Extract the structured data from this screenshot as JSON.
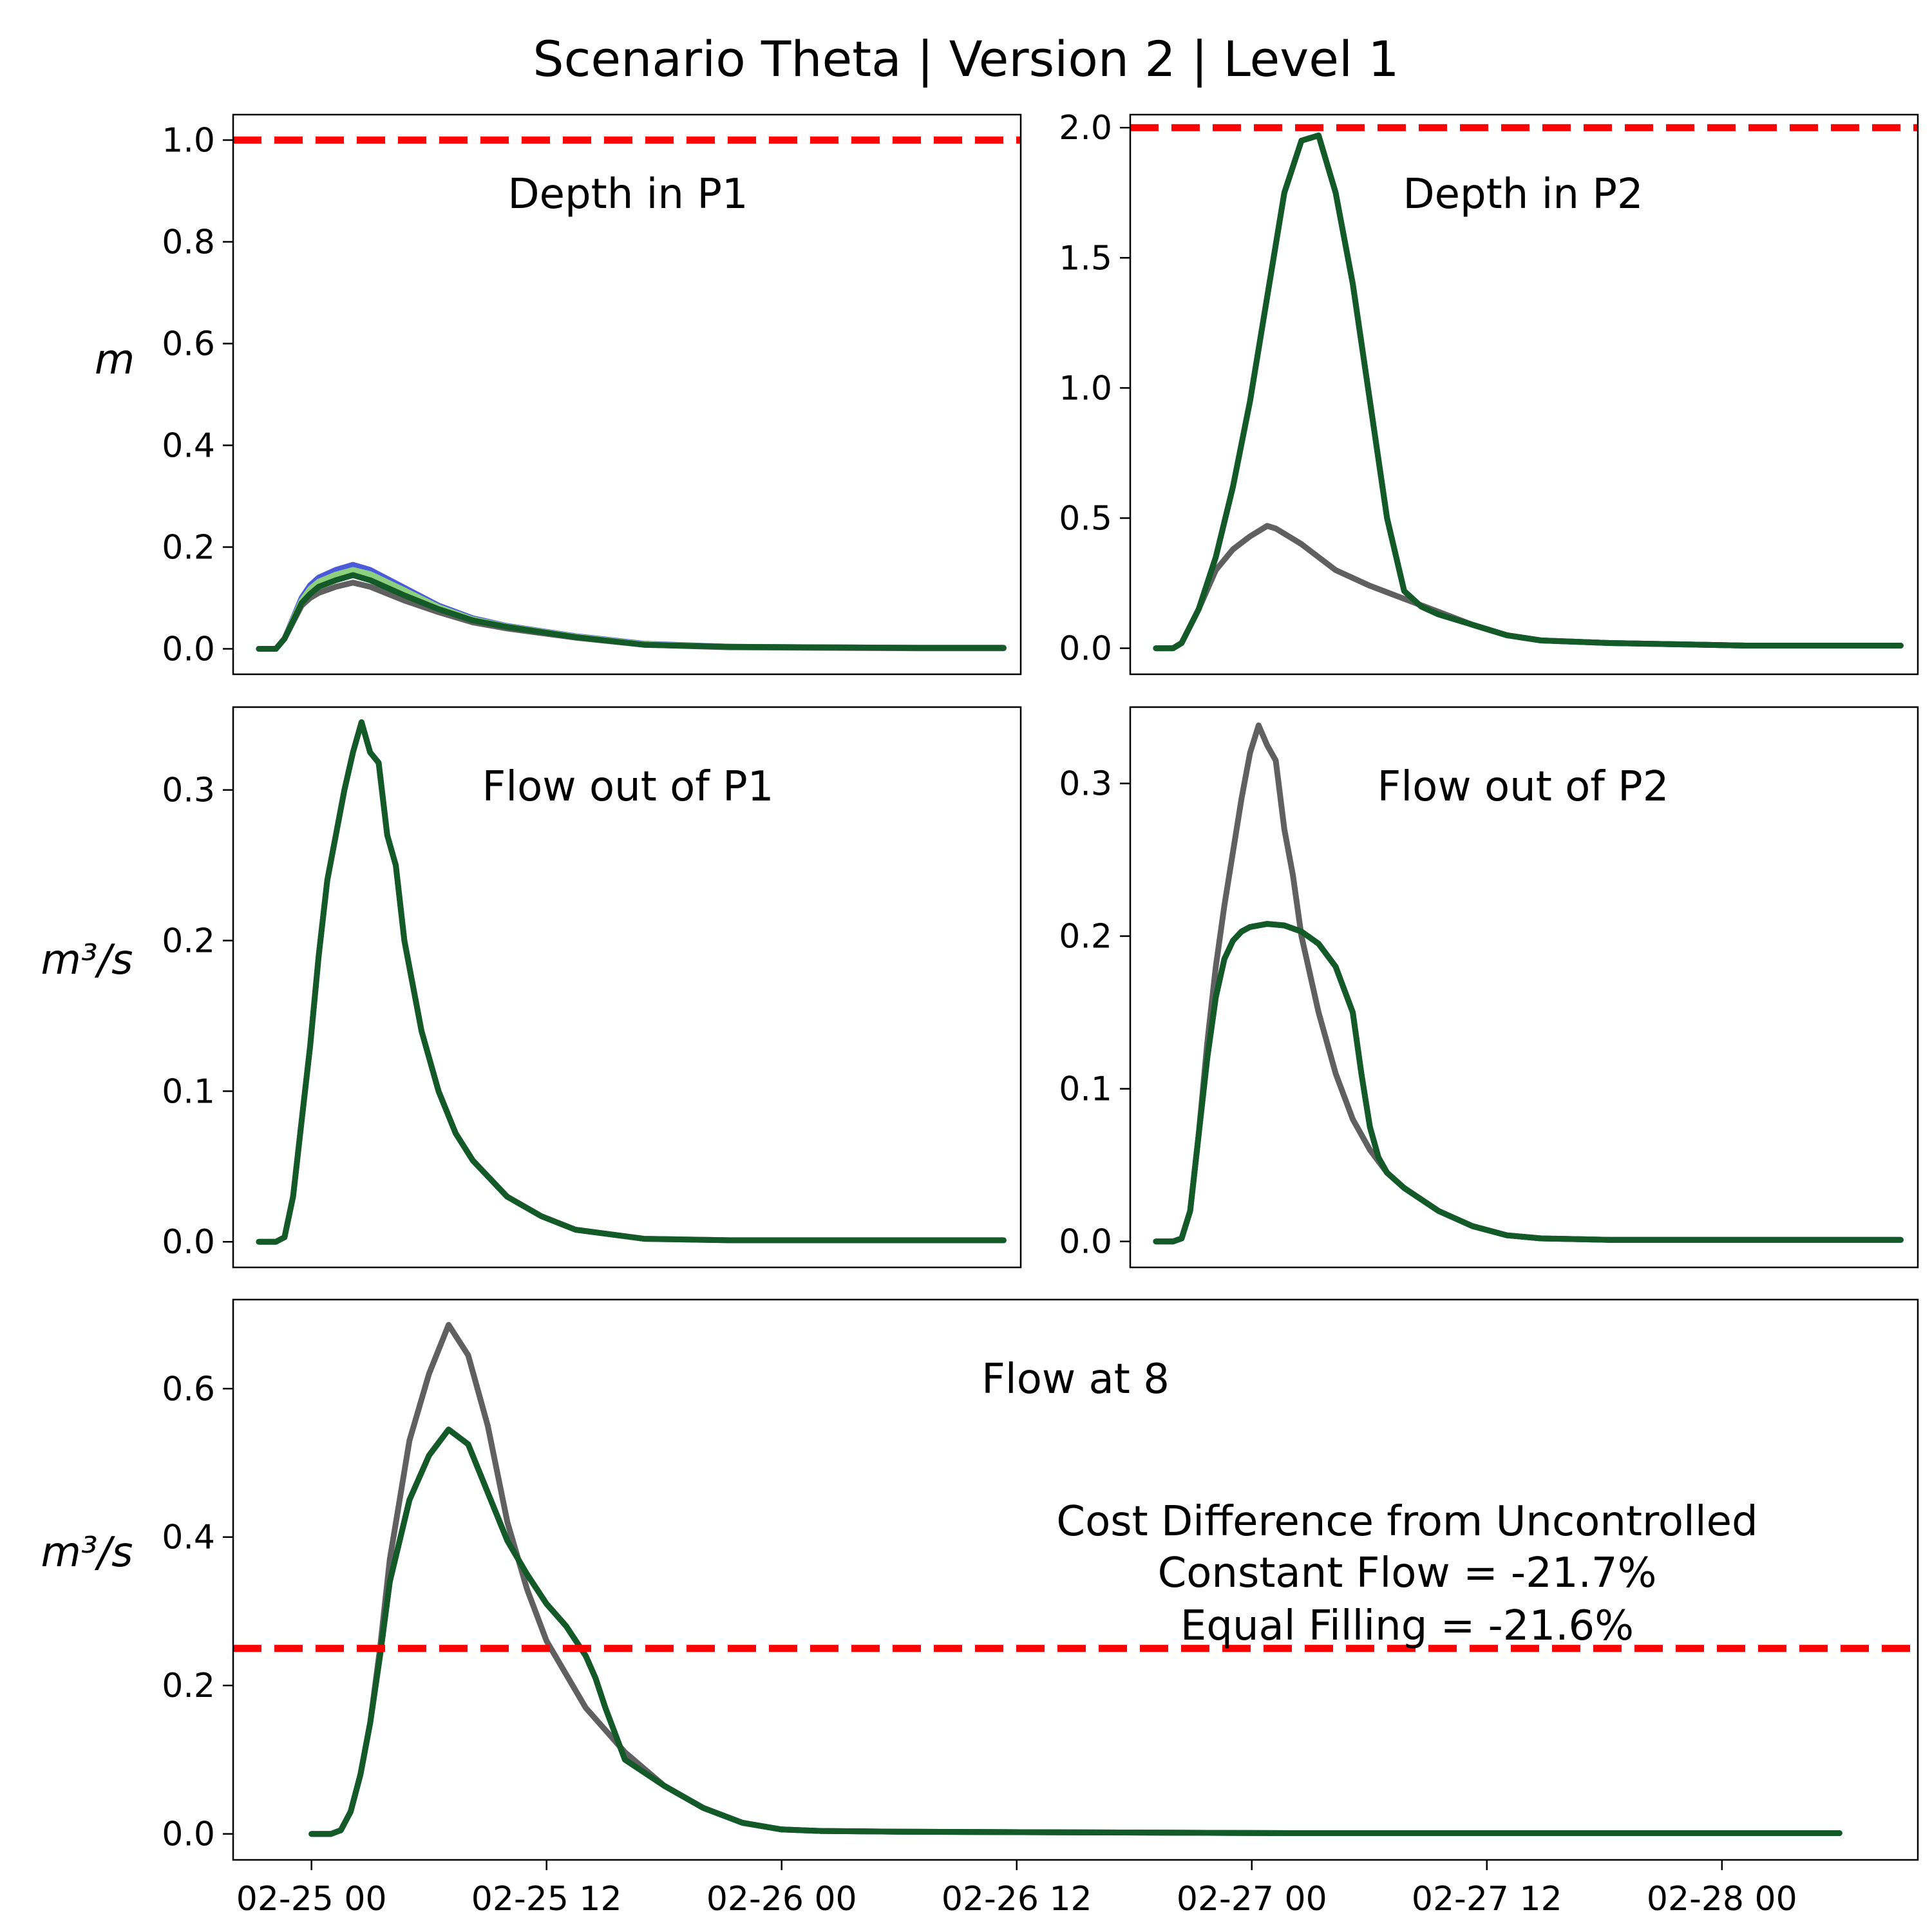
{
  "figure": {
    "title": "Scenario Theta | Version 2 | Level 1"
  },
  "colors": {
    "uncontrolled": "#606060",
    "equal_filling": "#1e6b60",
    "constant_flow": "#145a28",
    "blue_series": "#4a5ad8",
    "light_green_series": "#8fd080",
    "threshold": "#ff0000"
  },
  "x_axis": {
    "tick_labels": [
      "02-25 00",
      "02-25 12",
      "02-26 00",
      "02-26 12",
      "02-27 00",
      "02-27 12",
      "02-28 00"
    ],
    "tick_hours": [
      0,
      12,
      24,
      36,
      48,
      60,
      72
    ],
    "start": "2024-02-25 00:00",
    "range_hours": [
      -4,
      82
    ]
  },
  "annotation": {
    "line1": "Cost Difference from Uncontrolled",
    "line2": "Constant Flow = -21.7%",
    "line3": "Equal Filling = -21.6%"
  },
  "chart_data": [
    {
      "id": "depth_p1",
      "type": "line",
      "title": "Depth in P1",
      "ylabel": "m",
      "ylim": [
        -0.05,
        1.05
      ],
      "yticks": [
        0.0,
        0.2,
        0.4,
        0.6,
        0.8,
        1.0
      ],
      "ytick_labels": [
        "0.0",
        "0.2",
        "0.4",
        "0.6",
        "0.8",
        "1.0"
      ],
      "threshold": 1.0,
      "xrange": [
        -4,
        42
      ],
      "series": [
        {
          "key": "blue_series",
          "x": [
            -2.5,
            -1.5,
            -1,
            0,
            0.5,
            1,
            2,
            3,
            4,
            6,
            8,
            10,
            12,
            14,
            16,
            20,
            25,
            30,
            36,
            41
          ],
          "y": [
            0,
            0,
            0.02,
            0.1,
            0.125,
            0.14,
            0.155,
            0.165,
            0.155,
            0.12,
            0.085,
            0.06,
            0.045,
            0.035,
            0.025,
            0.01,
            0.004,
            0.003,
            0.002,
            0.002
          ]
        },
        {
          "key": "light_green_series",
          "x": [
            -2.5,
            -1.5,
            -1,
            0,
            0.5,
            1,
            2,
            3,
            4,
            6,
            8,
            10,
            12,
            14,
            16,
            20,
            25,
            30,
            36,
            41
          ],
          "y": [
            0,
            0,
            0.02,
            0.095,
            0.118,
            0.132,
            0.146,
            0.155,
            0.147,
            0.115,
            0.082,
            0.058,
            0.044,
            0.034,
            0.024,
            0.009,
            0.004,
            0.003,
            0.002,
            0.002
          ]
        },
        {
          "key": "uncontrolled",
          "x": [
            -2.5,
            -1.5,
            -1,
            0,
            0.5,
            1,
            2,
            3,
            4,
            6,
            8,
            10,
            12,
            14,
            16,
            20,
            25,
            30,
            36,
            41
          ],
          "y": [
            0,
            0,
            0.02,
            0.085,
            0.1,
            0.11,
            0.122,
            0.13,
            0.122,
            0.095,
            0.072,
            0.052,
            0.04,
            0.031,
            0.022,
            0.008,
            0.003,
            0.002,
            0.001,
            0.001
          ]
        },
        {
          "key": "constant_flow",
          "x": [
            -2.5,
            -1.5,
            -1,
            0,
            0.5,
            1,
            2,
            3,
            4,
            6,
            8,
            10,
            12,
            14,
            16,
            20,
            25,
            30,
            36,
            41
          ],
          "y": [
            0,
            0,
            0.02,
            0.09,
            0.108,
            0.122,
            0.135,
            0.145,
            0.135,
            0.105,
            0.078,
            0.056,
            0.043,
            0.033,
            0.023,
            0.008,
            0.004,
            0.003,
            0.002,
            0.002
          ]
        }
      ]
    },
    {
      "id": "depth_p2",
      "type": "line",
      "title": "Depth in P2",
      "ylabel": "",
      "ylim": [
        -0.1,
        2.05
      ],
      "yticks": [
        0.0,
        0.5,
        1.0,
        1.5,
        2.0
      ],
      "ytick_labels": [
        "0.0",
        "0.5",
        "1.0",
        "1.5",
        "2.0"
      ],
      "threshold": 2.0,
      "xrange": [
        34,
        80
      ],
      "series": [
        {
          "key": "uncontrolled",
          "x": [
            35.5,
            36.5,
            37,
            38,
            39,
            40,
            41,
            42,
            42.5,
            43,
            44,
            46,
            48,
            50,
            52,
            54,
            56,
            58,
            62,
            70,
            79
          ],
          "y": [
            0,
            0,
            0.02,
            0.15,
            0.3,
            0.38,
            0.43,
            0.47,
            0.46,
            0.44,
            0.4,
            0.3,
            0.24,
            0.19,
            0.14,
            0.09,
            0.05,
            0.03,
            0.02,
            0.01,
            0.01
          ]
        },
        {
          "key": "equal_filling",
          "x": [
            35.5,
            36.5,
            37,
            38,
            39,
            40,
            41,
            42,
            43,
            44,
            45,
            46,
            47,
            48,
            49,
            50,
            51,
            52,
            54,
            56,
            58,
            62,
            70,
            79
          ],
          "y": [
            0,
            0,
            0.02,
            0.15,
            0.35,
            0.62,
            0.95,
            1.35,
            1.75,
            1.95,
            1.97,
            1.75,
            1.4,
            0.95,
            0.5,
            0.22,
            0.16,
            0.13,
            0.09,
            0.05,
            0.03,
            0.02,
            0.01,
            0.01
          ]
        },
        {
          "key": "constant_flow",
          "x": [
            35.5,
            36.5,
            37,
            38,
            39,
            40,
            41,
            42,
            43,
            44,
            45,
            46,
            47,
            48,
            49,
            50,
            51,
            52,
            54,
            56,
            58,
            62,
            70,
            79
          ],
          "y": [
            0,
            0,
            0.02,
            0.15,
            0.35,
            0.62,
            0.95,
            1.35,
            1.75,
            1.95,
            1.97,
            1.75,
            1.4,
            0.95,
            0.5,
            0.22,
            0.16,
            0.13,
            0.09,
            0.05,
            0.03,
            0.02,
            0.01,
            0.01
          ]
        }
      ]
    },
    {
      "id": "flow_p1",
      "type": "line",
      "title": "Flow out of P1",
      "ylabel": "m³/s",
      "ylim": [
        -0.017,
        0.355
      ],
      "yticks": [
        0.0,
        0.1,
        0.2,
        0.3
      ],
      "ytick_labels": [
        "0.0",
        "0.1",
        "0.2",
        "0.3"
      ],
      "threshold": null,
      "xrange": [
        -4,
        42
      ],
      "series": [
        {
          "key": "uncontrolled",
          "x": [
            -2.5,
            -1.5,
            -1,
            -0.5,
            0,
            0.5,
            1,
            1.5,
            2,
            2.5,
            3,
            3.5,
            4,
            4.5,
            5,
            5.5,
            6,
            7,
            8,
            9,
            10,
            12,
            14,
            16,
            20,
            25,
            30,
            36,
            41
          ],
          "y": [
            0,
            0,
            0.003,
            0.03,
            0.08,
            0.13,
            0.19,
            0.24,
            0.27,
            0.3,
            0.325,
            0.345,
            0.325,
            0.318,
            0.27,
            0.25,
            0.2,
            0.14,
            0.1,
            0.072,
            0.054,
            0.03,
            0.017,
            0.008,
            0.002,
            0.001,
            0.001,
            0.001,
            0.001
          ]
        },
        {
          "key": "constant_flow",
          "x": [
            -2.5,
            -1.5,
            -1,
            -0.5,
            0,
            0.5,
            1,
            1.5,
            2,
            2.5,
            3,
            3.5,
            4,
            4.5,
            5,
            5.5,
            6,
            7,
            8,
            9,
            10,
            12,
            14,
            16,
            20,
            25,
            30,
            36,
            41
          ],
          "y": [
            0,
            0,
            0.003,
            0.03,
            0.08,
            0.13,
            0.19,
            0.24,
            0.27,
            0.3,
            0.325,
            0.345,
            0.325,
            0.318,
            0.27,
            0.25,
            0.2,
            0.14,
            0.1,
            0.072,
            0.054,
            0.03,
            0.017,
            0.008,
            0.002,
            0.001,
            0.001,
            0.001,
            0.001
          ]
        }
      ]
    },
    {
      "id": "flow_p2",
      "type": "line",
      "title": "Flow out of P2",
      "ylabel": "",
      "ylim": [
        -0.017,
        0.35
      ],
      "yticks": [
        0.0,
        0.1,
        0.2,
        0.3
      ],
      "ytick_labels": [
        "0.0",
        "0.1",
        "0.2",
        "0.3"
      ],
      "threshold": null,
      "xrange": [
        34,
        80
      ],
      "series": [
        {
          "key": "uncontrolled",
          "x": [
            35.5,
            36.5,
            37,
            37.5,
            38,
            38.5,
            39,
            39.5,
            40,
            40.5,
            41,
            41.5,
            42,
            42.5,
            43,
            43.5,
            44,
            45,
            46,
            47,
            48,
            49,
            50,
            52,
            54,
            56,
            58,
            62,
            70,
            79
          ],
          "y": [
            0,
            0,
            0.002,
            0.02,
            0.07,
            0.13,
            0.18,
            0.22,
            0.255,
            0.29,
            0.32,
            0.338,
            0.325,
            0.315,
            0.27,
            0.24,
            0.2,
            0.15,
            0.11,
            0.08,
            0.06,
            0.045,
            0.035,
            0.02,
            0.01,
            0.004,
            0.002,
            0.001,
            0.001,
            0.001
          ]
        },
        {
          "key": "equal_filling",
          "x": [
            35.5,
            36.5,
            37,
            37.5,
            38,
            38.5,
            39,
            39.5,
            40,
            40.5,
            41,
            42,
            43,
            44,
            45,
            46,
            47,
            47.5,
            48,
            48.5,
            49,
            50,
            52,
            54,
            56,
            58,
            62,
            70,
            79
          ],
          "y": [
            0,
            0,
            0.002,
            0.02,
            0.07,
            0.12,
            0.16,
            0.185,
            0.197,
            0.203,
            0.206,
            0.208,
            0.207,
            0.203,
            0.195,
            0.18,
            0.15,
            0.11,
            0.075,
            0.055,
            0.045,
            0.035,
            0.02,
            0.01,
            0.004,
            0.002,
            0.001,
            0.001,
            0.001
          ]
        },
        {
          "key": "constant_flow",
          "x": [
            35.5,
            36.5,
            37,
            37.5,
            38,
            38.5,
            39,
            39.5,
            40,
            40.5,
            41,
            42,
            43,
            44,
            45,
            46,
            47,
            47.5,
            48,
            48.5,
            49,
            50,
            52,
            54,
            56,
            58,
            62,
            70,
            79
          ],
          "y": [
            0,
            0,
            0.002,
            0.02,
            0.07,
            0.12,
            0.16,
            0.185,
            0.197,
            0.203,
            0.206,
            0.208,
            0.207,
            0.203,
            0.195,
            0.18,
            0.15,
            0.11,
            0.075,
            0.055,
            0.045,
            0.035,
            0.02,
            0.01,
            0.004,
            0.002,
            0.001,
            0.001,
            0.001
          ]
        }
      ]
    },
    {
      "id": "flow_at_8",
      "type": "line",
      "title": "Flow at 8",
      "ylabel": "m³/s",
      "ylim": [
        -0.035,
        0.72
      ],
      "yticks": [
        0.0,
        0.2,
        0.4,
        0.6
      ],
      "ytick_labels": [
        "0.0",
        "0.2",
        "0.4",
        "0.6"
      ],
      "threshold": 0.25,
      "xrange": [
        -4,
        82
      ],
      "series": [
        {
          "key": "uncontrolled",
          "x": [
            0,
            1,
            1.5,
            2,
            2.5,
            3,
            3.5,
            4,
            5,
            6,
            7,
            8,
            9,
            10,
            11,
            12,
            14,
            16,
            18,
            20,
            22,
            24,
            26,
            30,
            40,
            50,
            60,
            70,
            78
          ],
          "y": [
            0,
            0,
            0.005,
            0.03,
            0.08,
            0.15,
            0.25,
            0.37,
            0.53,
            0.62,
            0.686,
            0.645,
            0.55,
            0.42,
            0.33,
            0.26,
            0.17,
            0.11,
            0.065,
            0.035,
            0.015,
            0.006,
            0.004,
            0.003,
            0.002,
            0.001,
            0.001,
            0.001,
            0.001
          ]
        },
        {
          "key": "equal_filling",
          "x": [
            0,
            1,
            1.5,
            2,
            2.5,
            3,
            3.5,
            4,
            5,
            6,
            7,
            8,
            9,
            10,
            11,
            12,
            13,
            14,
            14.5,
            15,
            16,
            18,
            20,
            22,
            24,
            26,
            30,
            40,
            50,
            60,
            70,
            78
          ],
          "y": [
            0,
            0,
            0.005,
            0.03,
            0.08,
            0.15,
            0.24,
            0.34,
            0.45,
            0.51,
            0.545,
            0.525,
            0.46,
            0.395,
            0.35,
            0.31,
            0.28,
            0.24,
            0.21,
            0.17,
            0.1,
            0.065,
            0.035,
            0.015,
            0.006,
            0.004,
            0.003,
            0.002,
            0.001,
            0.001,
            0.001,
            0.001
          ]
        },
        {
          "key": "constant_flow",
          "x": [
            0,
            1,
            1.5,
            2,
            2.5,
            3,
            3.5,
            4,
            5,
            6,
            7,
            8,
            9,
            10,
            11,
            12,
            13,
            14,
            14.5,
            15,
            16,
            18,
            20,
            22,
            24,
            26,
            30,
            40,
            50,
            60,
            70,
            78
          ],
          "y": [
            0,
            0,
            0.005,
            0.03,
            0.08,
            0.15,
            0.24,
            0.34,
            0.45,
            0.51,
            0.545,
            0.525,
            0.46,
            0.395,
            0.35,
            0.31,
            0.28,
            0.24,
            0.21,
            0.17,
            0.1,
            0.065,
            0.035,
            0.015,
            0.006,
            0.004,
            0.003,
            0.002,
            0.001,
            0.001,
            0.001,
            0.001
          ]
        }
      ]
    }
  ]
}
